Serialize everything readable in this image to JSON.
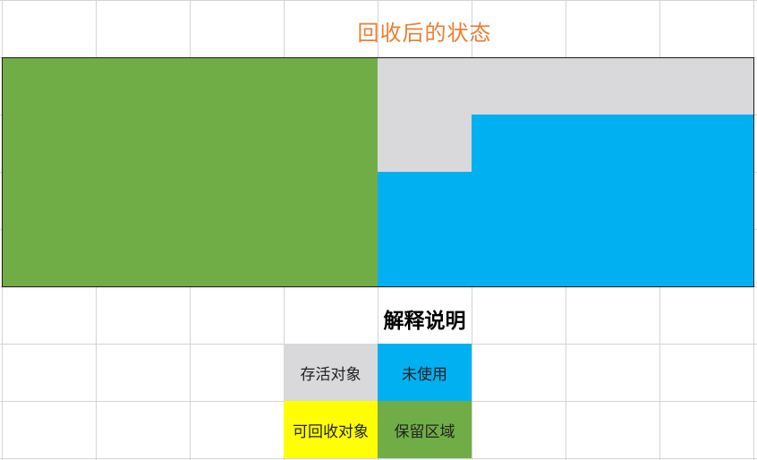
{
  "title": "回收后的状态",
  "subtitle": "解释说明",
  "colors": {
    "title_text": "#ED7D31",
    "surviving": "#D9D8DA",
    "unused": "#00B0F0",
    "collectible": "#FFFF00",
    "reserved": "#70AD47",
    "grid_line": "#D4D4D4",
    "cell_border": "#1A1A1A"
  },
  "memory_grid": {
    "rows": [
      [
        "reserved",
        "reserved",
        "reserved",
        "reserved",
        "surviving",
        "surviving",
        "surviving",
        "surviving"
      ],
      [
        "reserved",
        "reserved",
        "reserved",
        "reserved",
        "surviving",
        "unused",
        "unused",
        "unused"
      ],
      [
        "reserved",
        "reserved",
        "reserved",
        "reserved",
        "unused",
        "unused",
        "unused",
        "unused"
      ],
      [
        "reserved",
        "reserved",
        "reserved",
        "reserved",
        "unused",
        "unused",
        "unused",
        "unused"
      ]
    ]
  },
  "legend": [
    {
      "key": "surviving",
      "label": "存活对象"
    },
    {
      "key": "unused",
      "label": "未使用"
    },
    {
      "key": "collectible",
      "label": "可回收对象"
    },
    {
      "key": "reserved",
      "label": "保留区域"
    }
  ]
}
